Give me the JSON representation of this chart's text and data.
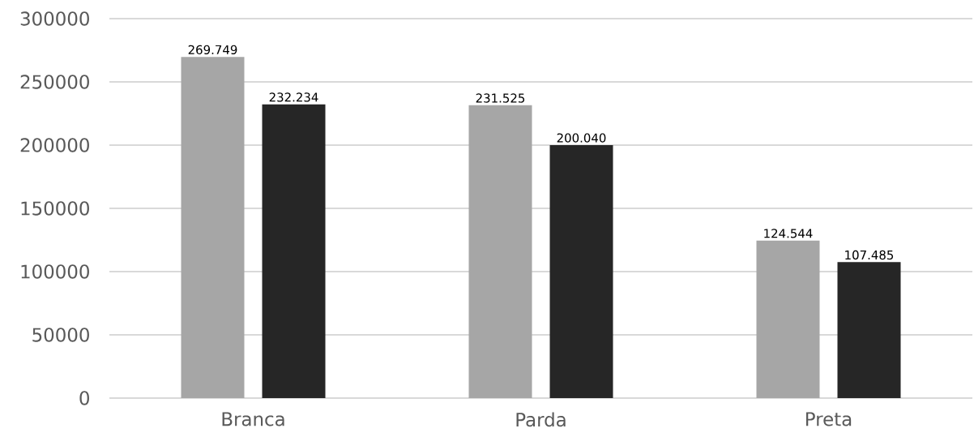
{
  "chart_data": {
    "type": "bar",
    "categories": [
      "Branca",
      "Parda",
      "Preta"
    ],
    "series": [
      {
        "color": "#a6a6a6",
        "values": [
          269749,
          231525,
          124544
        ],
        "value_labels": [
          "269.749",
          "231.525",
          "124.544"
        ]
      },
      {
        "color": "#262626",
        "values": [
          232234,
          200040,
          107485
        ],
        "value_labels": [
          "232.234",
          "200.040",
          "107.485"
        ]
      }
    ],
    "ylim": [
      0,
      300000
    ],
    "yticks": [
      0,
      50000,
      100000,
      150000,
      200000,
      250000,
      300000
    ],
    "grid": "y"
  }
}
